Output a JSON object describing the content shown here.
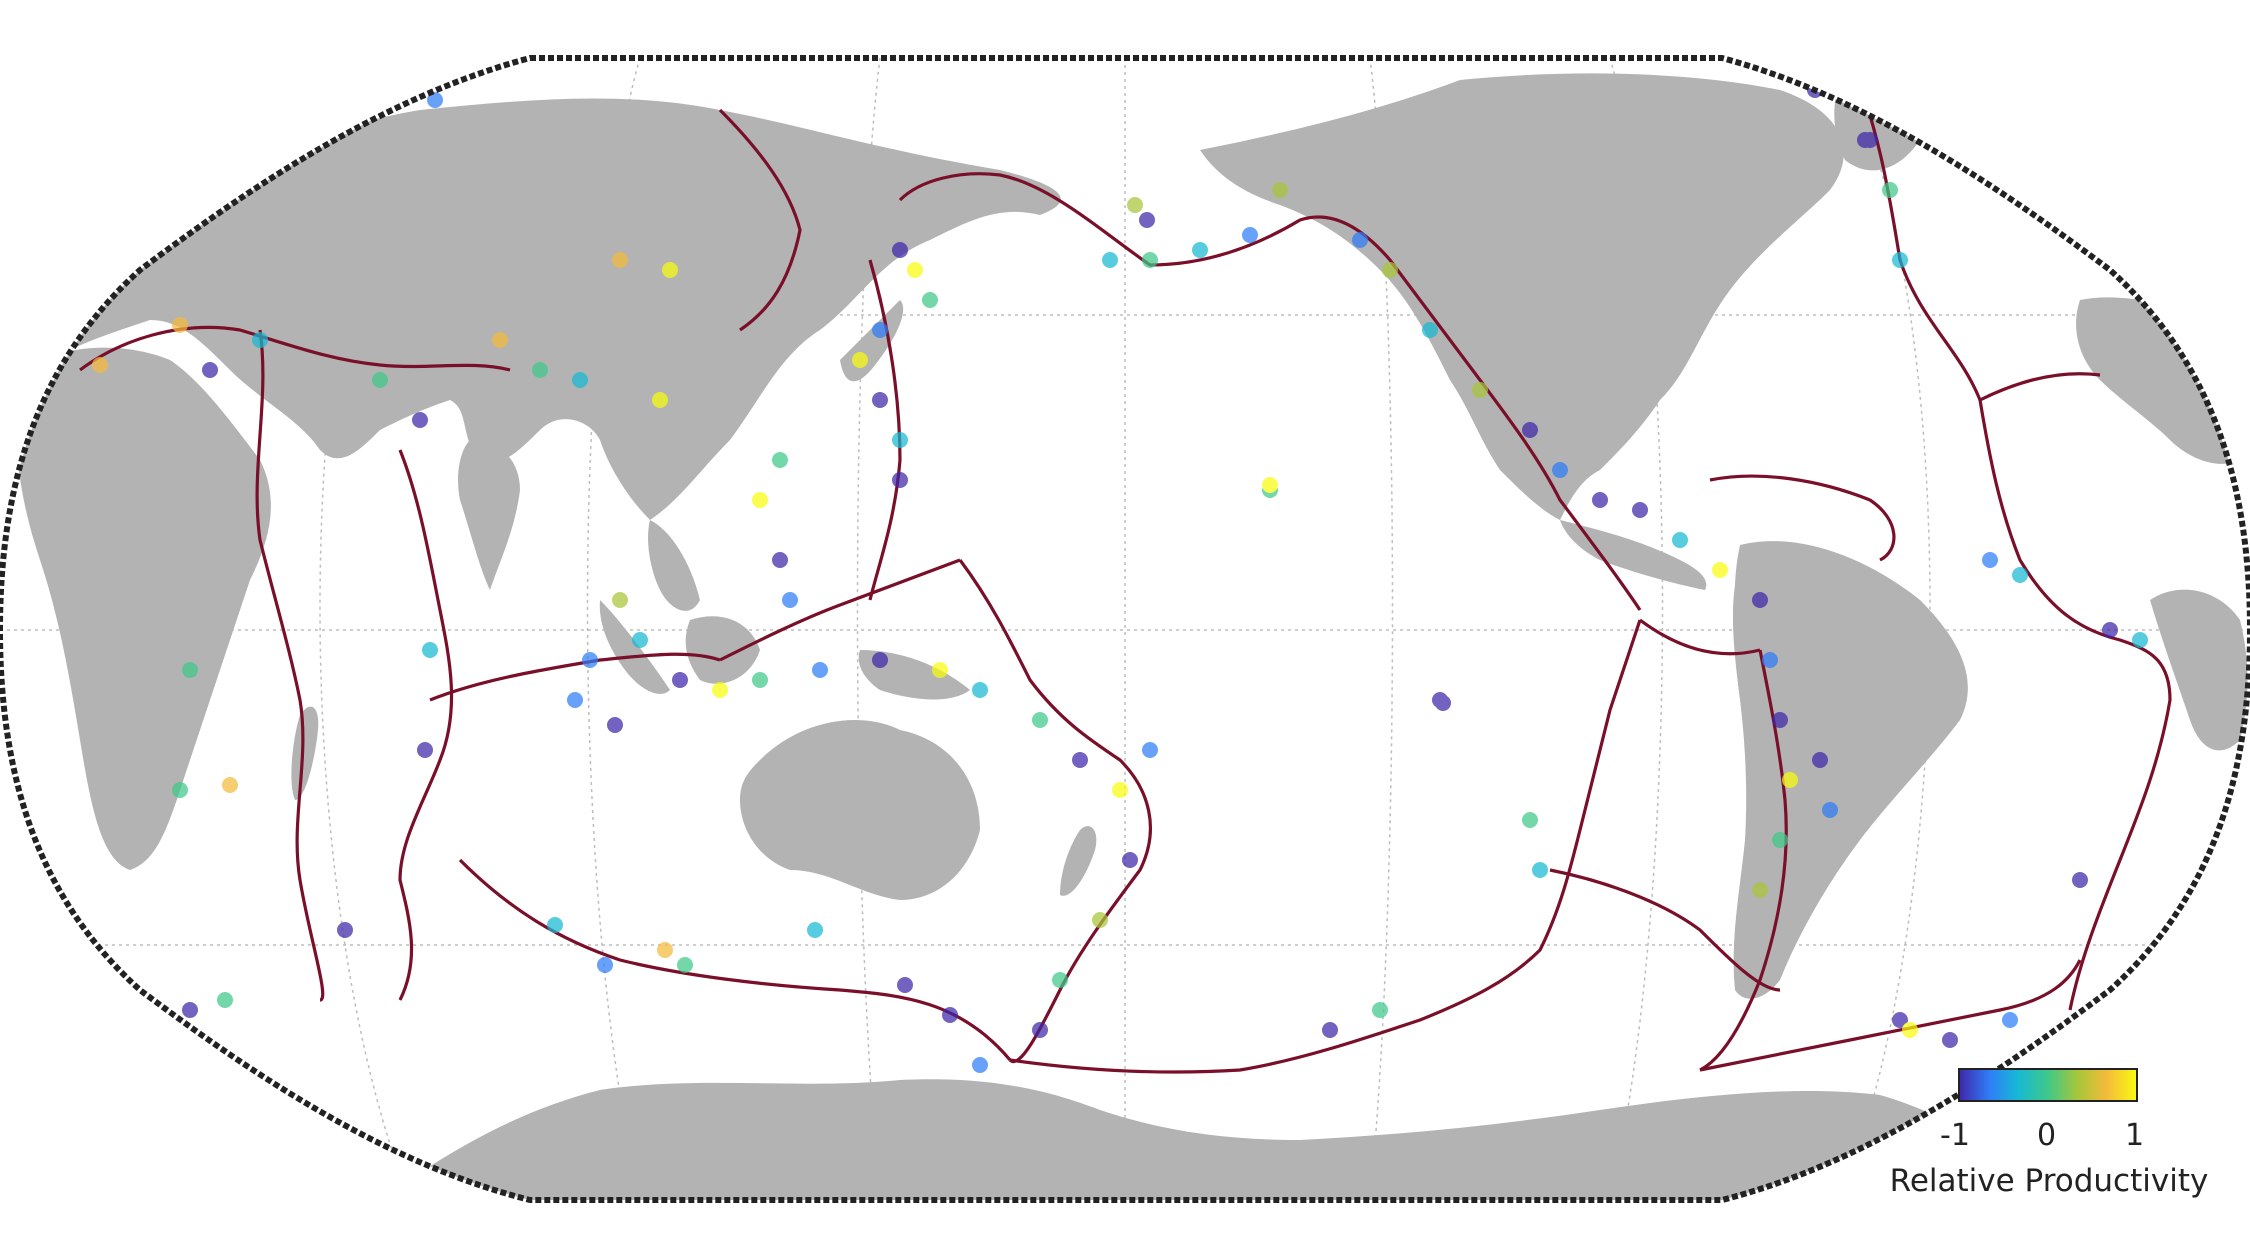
{
  "map": {
    "projection": "Robinson",
    "center": "Pacific",
    "land_color": "#b3b3b3",
    "ocean_color": "#ffffff",
    "plate_boundary_color": "#7a0f2a",
    "graticule": true,
    "frame": "scalloped black border"
  },
  "colorbar": {
    "label": "Relative Productivity",
    "ticks": [
      "-1",
      "0",
      "1"
    ],
    "range": [
      -1,
      1
    ],
    "colormap": "parula",
    "colors": [
      "#3e26a8",
      "#2f7df7",
      "#17b9d4",
      "#3fc889",
      "#a9c63a",
      "#f5ba3b",
      "#f9fb0e"
    ]
  }
}
